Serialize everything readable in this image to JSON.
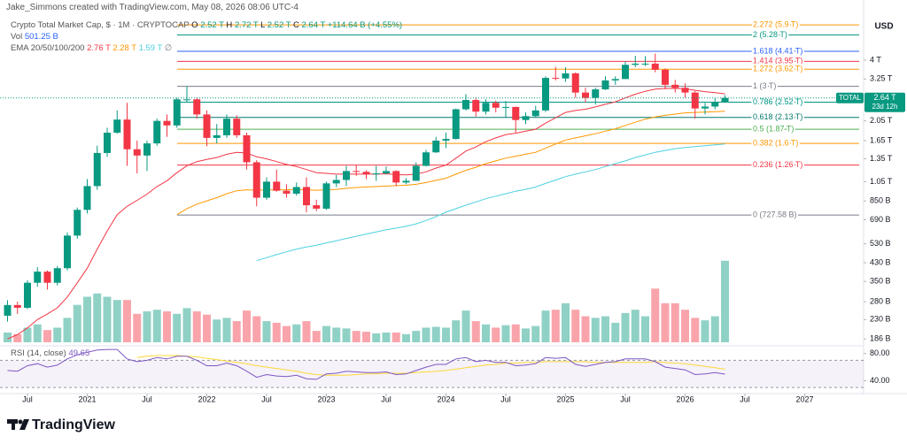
{
  "header": {
    "author": "Jake_Simmons created with TradingView.com, May 08, 2026 08:06 UTC-4",
    "currency": "USD",
    "brand": "TradingView"
  },
  "legend": {
    "symbol": "Crypto Total Market Cap, $ · 1M · CRYPTOCAP",
    "ohlc": [
      [
        "O",
        "2.52 T"
      ],
      [
        "H",
        "2.72 T"
      ],
      [
        "L",
        "2.52 T"
      ],
      [
        "C",
        "2.64 T"
      ]
    ],
    "change": "+114.64 B (+4.55%)",
    "vol_label": "Vol",
    "vol_value": "501.25 B",
    "ema_label": "EMA 20/50/100/200",
    "ema_values": [
      "2.76 T",
      "2.28 T",
      "1.59 T",
      "∅"
    ],
    "rsi_label": "RSI (14, close)",
    "rsi_value": "49.65"
  },
  "price_tag": {
    "symbol": "TOTAL",
    "price": "2.64 T",
    "countdown": "23d 12h"
  },
  "chart_data": {
    "type": "candlestick",
    "log_scale": true,
    "up_color": "#089981",
    "down_color": "#f23645",
    "x": [
      "2020-05",
      "2020-06",
      "2020-07",
      "2020-08",
      "2020-09",
      "2020-10",
      "2020-11",
      "2020-12",
      "2021-01",
      "2021-02",
      "2021-03",
      "2021-04",
      "2021-05",
      "2021-06",
      "2021-07",
      "2021-08",
      "2021-09",
      "2021-10",
      "2021-11",
      "2021-12",
      "2022-01",
      "2022-02",
      "2022-03",
      "2022-04",
      "2022-05",
      "2022-06",
      "2022-07",
      "2022-08",
      "2022-09",
      "2022-10",
      "2022-11",
      "2022-12",
      "2023-01",
      "2023-02",
      "2023-03",
      "2023-04",
      "2023-05",
      "2023-06",
      "2023-07",
      "2023-08",
      "2023-09",
      "2023-10",
      "2023-11",
      "2023-12",
      "2024-01",
      "2024-02",
      "2024-03",
      "2024-04",
      "2024-05",
      "2024-06",
      "2024-07",
      "2024-08",
      "2024-09",
      "2024-10",
      "2024-11",
      "2024-12",
      "2025-01",
      "2025-02",
      "2025-03",
      "2025-04",
      "2025-05",
      "2025-06",
      "2025-07",
      "2025-08",
      "2025-09",
      "2025-10",
      "2025-11",
      "2025-12",
      "2026-01",
      "2026-02",
      "2026-03",
      "2026-04",
      "2026-05"
    ],
    "open": [
      240,
      270,
      262,
      345,
      390,
      345,
      405,
      580,
      770,
      1000,
      1440,
      1800,
      2080,
      1500,
      1400,
      1600,
      2050,
      1950,
      2600,
      2600,
      2200,
      1700,
      1750,
      2100,
      1750,
      1300,
      880,
      1050,
      950,
      920,
      990,
      810,
      780,
      1030,
      1070,
      1180,
      1170,
      1140,
      1150,
      1180,
      1040,
      1060,
      1250,
      1450,
      1650,
      1680,
      2330,
      2580,
      2270,
      2500,
      2370,
      2390,
      2070,
      2160,
      2300,
      3290,
      3270,
      3460,
      2800,
      2640,
      2900,
      3200,
      3250,
      3800,
      3850,
      3850,
      3600,
      3050,
      2950,
      2800,
      2350,
      2400,
      2520
    ],
    "high": [
      285,
      280,
      355,
      410,
      395,
      415,
      600,
      790,
      1080,
      1560,
      1900,
      2300,
      2500,
      1650,
      1650,
      2100,
      2200,
      2650,
      3000,
      2650,
      2300,
      1980,
      2200,
      2180,
      1800,
      1330,
      1100,
      1200,
      1020,
      1040,
      1100,
      860,
      1050,
      1130,
      1250,
      1260,
      1190,
      1250,
      1240,
      1190,
      1090,
      1300,
      1490,
      1720,
      1800,
      2350,
      2750,
      2650,
      2600,
      2560,
      2550,
      2400,
      2250,
      2420,
      3350,
      3720,
      3700,
      3500,
      2950,
      2950,
      3350,
      3350,
      3950,
      4200,
      4180,
      4300,
      3650,
      3220,
      3100,
      2850,
      2500,
      2640,
      2720
    ],
    "low": [
      225,
      245,
      258,
      330,
      320,
      335,
      395,
      560,
      740,
      960,
      1380,
      1780,
      1250,
      1150,
      1180,
      1560,
      1720,
      1900,
      2500,
      2100,
      1550,
      1600,
      1700,
      1700,
      1200,
      800,
      860,
      940,
      880,
      900,
      750,
      760,
      770,
      990,
      1000,
      1120,
      1080,
      1060,
      1140,
      1000,
      1020,
      1060,
      1240,
      1440,
      1520,
      1670,
      2300,
      2150,
      2200,
      2250,
      2130,
      1800,
      1980,
      2140,
      2260,
      3200,
      3150,
      2650,
      2500,
      2450,
      2880,
      3050,
      3250,
      3700,
      3750,
      3500,
      2900,
      2800,
      2650,
      2100,
      2200,
      2330,
      2520
    ],
    "close": [
      270,
      262,
      345,
      390,
      345,
      405,
      580,
      770,
      1000,
      1440,
      1800,
      2080,
      1500,
      1400,
      1600,
      2050,
      1950,
      2600,
      2600,
      2200,
      1700,
      1750,
      2100,
      1750,
      1300,
      880,
      1050,
      950,
      920,
      990,
      810,
      780,
      1030,
      1070,
      1180,
      1170,
      1140,
      1150,
      1180,
      1040,
      1060,
      1250,
      1450,
      1650,
      1680,
      2330,
      2580,
      2270,
      2500,
      2370,
      2390,
      2070,
      2160,
      2300,
      3290,
      3270,
      3460,
      2800,
      2640,
      2900,
      3200,
      3250,
      3800,
      3850,
      3850,
      3600,
      3050,
      2950,
      2800,
      2350,
      2400,
      2520,
      2640
    ],
    "ylim": [
      174,
      6510
    ],
    "yticks": [
      {
        "value": 4000,
        "label": "4 T"
      },
      {
        "value": 3250,
        "label": "3.25 T"
      },
      {
        "value": 2050,
        "label": "2.05 T"
      },
      {
        "value": 1650,
        "label": "1.65 T"
      },
      {
        "value": 1350,
        "label": "1.35 T"
      },
      {
        "value": 1050,
        "label": "1.05 T"
      },
      {
        "value": 850,
        "label": "850 B"
      },
      {
        "value": 690,
        "label": "690 B"
      },
      {
        "value": 530,
        "label": "530 B"
      },
      {
        "value": 430,
        "label": "430 B"
      },
      {
        "value": 350,
        "label": "350 B"
      },
      {
        "value": 280,
        "label": "280 B"
      },
      {
        "value": 230,
        "label": "230 B"
      },
      {
        "value": 186,
        "label": "186 B"
      }
    ],
    "xticks": [
      {
        "value": "2020-07",
        "label": "Jul"
      },
      {
        "value": "2021-01",
        "label": "2021"
      },
      {
        "value": "2021-07",
        "label": "Jul"
      },
      {
        "value": "2022-01",
        "label": "2022"
      },
      {
        "value": "2022-07",
        "label": "Jul"
      },
      {
        "value": "2023-01",
        "label": "2023"
      },
      {
        "value": "2023-07",
        "label": "Jul"
      },
      {
        "value": "2024-01",
        "label": "2024"
      },
      {
        "value": "2024-07",
        "label": "Jul"
      },
      {
        "value": "2025-01",
        "label": "2025"
      },
      {
        "value": "2025-07",
        "label": "Jul"
      },
      {
        "value": "2026-01",
        "label": "2026"
      },
      {
        "value": "2026-07",
        "label": "Jul"
      },
      {
        "value": "2027-01",
        "label": "2027"
      }
    ],
    "volume": {
      "ylim": [
        0,
        560
      ],
      "values": [
        60,
        50,
        90,
        110,
        75,
        90,
        150,
        230,
        280,
        300,
        280,
        260,
        260,
        175,
        190,
        200,
        190,
        175,
        210,
        190,
        170,
        140,
        150,
        130,
        195,
        160,
        130,
        120,
        100,
        110,
        130,
        70,
        100,
        90,
        85,
        70,
        65,
        55,
        60,
        60,
        50,
        70,
        90,
        95,
        90,
        135,
        195,
        130,
        110,
        90,
        105,
        110,
        85,
        100,
        195,
        200,
        240,
        200,
        160,
        150,
        160,
        120,
        180,
        200,
        160,
        330,
        240,
        240,
        200,
        150,
        135,
        160,
        501.25
      ]
    },
    "ema": [
      {
        "color": "#f23645",
        "values": [
          186,
          195,
          210,
          230,
          245,
          262,
          295,
          345,
          405,
          500,
          610,
          730,
          800,
          855,
          915,
          995,
          1060,
          1160,
          1250,
          1310,
          1340,
          1370,
          1420,
          1450,
          1440,
          1380,
          1350,
          1310,
          1270,
          1240,
          1200,
          1160,
          1150,
          1140,
          1140,
          1140,
          1140,
          1140,
          1145,
          1135,
          1130,
          1140,
          1170,
          1220,
          1260,
          1360,
          1470,
          1540,
          1630,
          1700,
          1760,
          1790,
          1830,
          1870,
          2000,
          2120,
          2250,
          2300,
          2330,
          2390,
          2460,
          2530,
          2640,
          2750,
          2840,
          2910,
          2930,
          2930,
          2920,
          2870,
          2830,
          2800,
          2760
        ]
      },
      {
        "color": "#ff9800",
        "values": [
          null,
          null,
          null,
          null,
          null,
          null,
          null,
          null,
          null,
          null,
          null,
          null,
          null,
          null,
          null,
          null,
          null,
          730,
          780,
          820,
          850,
          880,
          920,
          950,
          960,
          955,
          960,
          960,
          960,
          965,
          960,
          955,
          960,
          965,
          975,
          985,
          990,
          995,
          1000,
          1005,
          1010,
          1020,
          1040,
          1065,
          1090,
          1140,
          1190,
          1230,
          1280,
          1320,
          1360,
          1390,
          1420,
          1450,
          1520,
          1590,
          1660,
          1700,
          1740,
          1780,
          1830,
          1880,
          1950,
          2020,
          2090,
          2140,
          2180,
          2210,
          2240,
          2250,
          2260,
          2270,
          2280
        ]
      },
      {
        "color": "#4dd0e1",
        "values": [
          null,
          null,
          null,
          null,
          null,
          null,
          null,
          null,
          null,
          null,
          null,
          null,
          null,
          null,
          null,
          null,
          null,
          null,
          null,
          null,
          null,
          null,
          null,
          null,
          null,
          440,
          455,
          470,
          485,
          500,
          512,
          522,
          535,
          548,
          562,
          576,
          590,
          604,
          618,
          630,
          642,
          660,
          685,
          715,
          750,
          780,
          810,
          840,
          870,
          895,
          920,
          945,
          965,
          990,
          1030,
          1070,
          1110,
          1140,
          1170,
          1200,
          1240,
          1280,
          1320,
          1370,
          1410,
          1450,
          1480,
          1510,
          1530,
          1545,
          1560,
          1575,
          1590
        ]
      }
    ],
    "fib_levels": [
      {
        "label": "2.272 (5.9 T)",
        "value": 5900,
        "color": "#ff9800"
      },
      {
        "label": "2 (5.28 T)",
        "value": 5280,
        "color": "#089981"
      },
      {
        "label": "1.618 (4.41 T)",
        "value": 4410,
        "color": "#2962ff"
      },
      {
        "label": "1.414 (3.95 T)",
        "value": 3950,
        "color": "#f23645"
      },
      {
        "label": "1.272 (3.62 T)",
        "value": 3620,
        "color": "#ff9800"
      },
      {
        "label": "1 (3 T)",
        "value": 3000,
        "color": "#787b86"
      },
      {
        "label": "0.786 (2.52 T)",
        "value": 2520,
        "color": "#009688"
      },
      {
        "label": "0.618 (2.13 T)",
        "value": 2130,
        "color": "#00796b"
      },
      {
        "label": "0.5 (1.87 T)",
        "value": 1870,
        "color": "#4caf50"
      },
      {
        "label": "0.382 (1.6 T)",
        "value": 1600,
        "color": "#ff9800"
      },
      {
        "label": "0.236 (1.26 T)",
        "value": 1260,
        "color": "#f23645"
      },
      {
        "label": "0 (727.58 B)",
        "value": 727.58,
        "color": "#787b86"
      }
    ],
    "rsi": {
      "color": "#7e57c2",
      "ma_color": "#fdd835",
      "ylim": [
        25,
        90
      ],
      "band": [
        30,
        70
      ],
      "yticks": [
        {
          "value": 80,
          "label": "80.00"
        },
        {
          "value": 40,
          "label": "40.00"
        }
      ],
      "values": [
        55,
        54,
        62,
        65,
        60,
        63,
        72,
        78,
        82,
        85,
        86,
        86,
        72,
        68,
        70,
        74,
        72,
        76,
        76,
        70,
        62,
        62,
        66,
        62,
        54,
        45,
        49,
        47,
        46,
        48,
        43,
        42,
        50,
        51,
        54,
        53,
        52,
        52,
        53,
        49,
        50,
        55,
        60,
        64,
        64,
        72,
        74,
        68,
        70,
        67,
        67,
        62,
        63,
        65,
        74,
        73,
        74,
        64,
        61,
        64,
        67,
        68,
        72,
        72,
        72,
        68,
        60,
        58,
        56,
        49,
        50,
        52,
        49.65
      ],
      "ma": [
        null,
        null,
        null,
        null,
        null,
        null,
        null,
        null,
        null,
        null,
        null,
        null,
        null,
        74,
        76,
        77,
        77,
        77,
        76,
        75,
        73,
        71,
        69,
        67,
        65,
        62,
        60,
        58,
        56,
        54,
        51,
        49,
        48,
        48,
        48,
        49,
        50,
        50,
        51,
        51,
        51,
        52,
        53,
        54,
        55,
        57,
        59,
        61,
        63,
        64,
        66,
        66,
        67,
        67,
        68,
        68,
        68,
        68,
        68,
        67,
        67,
        67,
        67,
        67,
        67,
        68,
        67,
        66,
        65,
        63,
        61,
        59,
        57
      ]
    }
  }
}
